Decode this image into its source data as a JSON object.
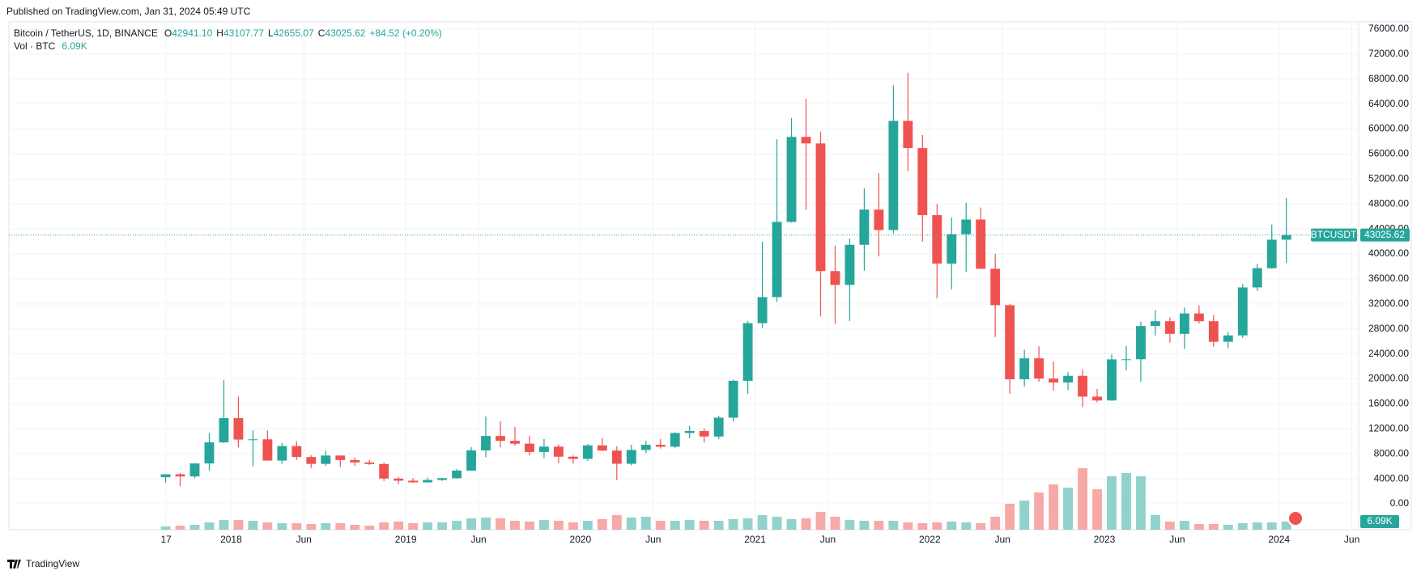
{
  "header": "Published on TradingView.com, Jan 31, 2024 05:49 UTC",
  "footer": "TradingView",
  "chart_data": {
    "type": "candlestick",
    "symbol": "Bitcoin / TetherUS, 1D, BINANCE",
    "ohlc_legend": [
      {
        "label": "O",
        "value": "42941.10"
      },
      {
        "label": "H",
        "value": "43107.77"
      },
      {
        "label": "L",
        "value": "42655.07"
      },
      {
        "label": "C",
        "value": "43025.62"
      }
    ],
    "change": "+84.52 (+0.20%)",
    "volume_title": "Vol · BTC",
    "volume_last": "6.09K",
    "price_label": "BTCUSDT",
    "last_price": 43025.62,
    "up_color": "#26a69a",
    "down_color": "#ef5350",
    "x": [
      "2017-08",
      "2017-09",
      "2017-10",
      "2017-11",
      "2017-12",
      "2018-01",
      "2018-02",
      "2018-03",
      "2018-04",
      "2018-05",
      "2018-06",
      "2018-07",
      "2018-08",
      "2018-09",
      "2018-10",
      "2018-11",
      "2018-12",
      "2019-01",
      "2019-02",
      "2019-03",
      "2019-04",
      "2019-05",
      "2019-06",
      "2019-07",
      "2019-08",
      "2019-09",
      "2019-10",
      "2019-11",
      "2019-12",
      "2020-01",
      "2020-02",
      "2020-03",
      "2020-04",
      "2020-05",
      "2020-06",
      "2020-07",
      "2020-08",
      "2020-09",
      "2020-10",
      "2020-11",
      "2020-12",
      "2021-01",
      "2021-02",
      "2021-03",
      "2021-04",
      "2021-05",
      "2021-06",
      "2021-07",
      "2021-08",
      "2021-09",
      "2021-10",
      "2021-11",
      "2021-12",
      "2022-01",
      "2022-02",
      "2022-03",
      "2022-04",
      "2022-05",
      "2022-06",
      "2022-07",
      "2022-08",
      "2022-09",
      "2022-10",
      "2022-11",
      "2022-12",
      "2023-01",
      "2023-02",
      "2023-03",
      "2023-04",
      "2023-05",
      "2023-06",
      "2023-07",
      "2023-08",
      "2023-09",
      "2023-10",
      "2023-11",
      "2023-12",
      "2024-01"
    ],
    "ohlc": [
      [
        4261,
        4745,
        3400,
        4724
      ],
      [
        4724,
        4939,
        2817,
        4378
      ],
      [
        4378,
        6470,
        4110,
        6463
      ],
      [
        6463,
        11300,
        5325,
        9838
      ],
      [
        9838,
        19798,
        9722,
        13716
      ],
      [
        13716,
        17176,
        9035,
        10285
      ],
      [
        10285,
        11786,
        6000,
        10326
      ],
      [
        10326,
        11710,
        7322,
        6923
      ],
      [
        6923,
        9759,
        6430,
        9246
      ],
      [
        9246,
        10020,
        7032,
        7494
      ],
      [
        7494,
        7777,
        5750,
        6391
      ],
      [
        6391,
        8507,
        6070,
        7730
      ],
      [
        7730,
        7760,
        5880,
        7011
      ],
      [
        7011,
        7410,
        6100,
        6626
      ],
      [
        6626,
        7000,
        6200,
        6371
      ],
      [
        6371,
        6600,
        3652,
        4041
      ],
      [
        4041,
        4300,
        3156,
        3702
      ],
      [
        3702,
        4140,
        3350,
        3434
      ],
      [
        3434,
        4198,
        3360,
        3814
      ],
      [
        3814,
        4140,
        3670,
        4103
      ],
      [
        4103,
        5600,
        4030,
        5320
      ],
      [
        5320,
        9074,
        5350,
        8555
      ],
      [
        8555,
        13970,
        7440,
        10855
      ],
      [
        10855,
        13200,
        9010,
        10085
      ],
      [
        10085,
        12325,
        9320,
        9630
      ],
      [
        9630,
        10905,
        7710,
        8294
      ],
      [
        8294,
        10370,
        7300,
        9150
      ],
      [
        9150,
        9500,
        6515,
        7546
      ],
      [
        7546,
        7750,
        6435,
        7195
      ],
      [
        7195,
        9580,
        6870,
        9353
      ],
      [
        9353,
        10500,
        8450,
        8523
      ],
      [
        8523,
        9200,
        3782,
        6410
      ],
      [
        6410,
        9460,
        6150,
        8620
      ],
      [
        8620,
        10070,
        8100,
        9448
      ],
      [
        9448,
        10380,
        8833,
        9138
      ],
      [
        9138,
        11444,
        8900,
        11335
      ],
      [
        11335,
        12468,
        10525,
        11650
      ],
      [
        11650,
        12067,
        9825,
        10776
      ],
      [
        10776,
        14100,
        10375,
        13791
      ],
      [
        13791,
        19863,
        13195,
        19696
      ],
      [
        19696,
        29300,
        17572,
        28923
      ],
      [
        28923,
        41950,
        28130,
        33092
      ],
      [
        33092,
        58352,
        32296,
        45135
      ],
      [
        45135,
        61781,
        45000,
        58740
      ],
      [
        58740,
        64854,
        47044,
        57694
      ],
      [
        57694,
        59592,
        30000,
        37253
      ],
      [
        37253,
        41330,
        28805,
        35045
      ],
      [
        35045,
        42448,
        29278,
        41461
      ],
      [
        41461,
        50500,
        37332,
        47100
      ],
      [
        47100,
        52920,
        39600,
        43824
      ],
      [
        43824,
        67000,
        43283,
        61300
      ],
      [
        61300,
        69000,
        53256,
        56950
      ],
      [
        56950,
        59053,
        42000,
        46216
      ],
      [
        46216,
        47990,
        32917,
        38466
      ],
      [
        38466,
        45821,
        34322,
        43160
      ],
      [
        43160,
        48189,
        37155,
        45510
      ],
      [
        45510,
        47444,
        37578,
        37630
      ],
      [
        37630,
        40023,
        26700,
        31801
      ],
      [
        31801,
        31982,
        17622,
        19942
      ],
      [
        19942,
        24668,
        18781,
        23293
      ],
      [
        23293,
        25211,
        19520,
        20050
      ],
      [
        20050,
        22799,
        18125,
        19423
      ],
      [
        19423,
        21085,
        18190,
        20490
      ],
      [
        20490,
        21480,
        15476,
        17164
      ],
      [
        17164,
        18387,
        16256,
        16542
      ],
      [
        16542,
        23960,
        16499,
        23125
      ],
      [
        23125,
        25250,
        21351,
        23141
      ],
      [
        23141,
        29184,
        19549,
        28465
      ],
      [
        28465,
        31000,
        26942,
        29233
      ],
      [
        29233,
        29820,
        25811,
        27210
      ],
      [
        27210,
        31431,
        24800,
        30472
      ],
      [
        30472,
        31804,
        28861,
        29232
      ],
      [
        29232,
        30244,
        25166,
        25941
      ],
      [
        25941,
        27488,
        24901,
        26963
      ],
      [
        26963,
        35198,
        26538,
        34639
      ],
      [
        34639,
        38450,
        34097,
        37724
      ],
      [
        37724,
        44700,
        37615,
        42284
      ],
      [
        42284,
        48969,
        38555,
        43025.62
      ]
    ],
    "volume": [
      20000,
      25000,
      30000,
      45000,
      60000,
      60000,
      55000,
      45000,
      40000,
      40000,
      35000,
      40000,
      40000,
      30000,
      25000,
      45000,
      50000,
      40000,
      45000,
      45000,
      55000,
      70000,
      75000,
      70000,
      55000,
      50000,
      60000,
      55000,
      45000,
      55000,
      65000,
      90000,
      75000,
      80000,
      55000,
      55000,
      60000,
      55000,
      55000,
      65000,
      70000,
      90000,
      80000,
      65000,
      70000,
      110000,
      80000,
      60000,
      55000,
      55000,
      55000,
      45000,
      40000,
      45000,
      50000,
      45000,
      40000,
      80000,
      160000,
      180000,
      230000,
      280000,
      260000,
      380000,
      250000,
      330000,
      350000,
      330000,
      90000,
      50000,
      55000,
      35000,
      35000,
      30000,
      40000,
      45000,
      45000,
      50000
    ],
    "volume_ylim": [
      0,
      800000
    ],
    "xlim": [
      "2016-09-23",
      "2024-06-15"
    ],
    "xticks": [
      {
        "value": "2017-08-17",
        "label": "17"
      },
      {
        "value": "2018-01",
        "label": "2018"
      },
      {
        "value": "2018-06",
        "label": "Jun"
      },
      {
        "value": "2019-01",
        "label": "2019"
      },
      {
        "value": "2019-06",
        "label": "Jun"
      },
      {
        "value": "2020-01",
        "label": "2020"
      },
      {
        "value": "2020-06",
        "label": "Jun"
      },
      {
        "value": "2021-01",
        "label": "2021"
      },
      {
        "value": "2021-06",
        "label": "Jun"
      },
      {
        "value": "2022-01",
        "label": "2022"
      },
      {
        "value": "2022-06",
        "label": "Jun"
      },
      {
        "value": "2023-01",
        "label": "2023"
      },
      {
        "value": "2023-06",
        "label": "Jun"
      },
      {
        "value": "2024-01",
        "label": "2024"
      },
      {
        "value": "2024-06",
        "label": "Jun"
      }
    ],
    "ylim": [
      -4140,
      77160
    ],
    "yticks": [
      {
        "value": 0,
        "label": "0.00"
      },
      {
        "value": 4000,
        "label": "4000.00"
      },
      {
        "value": 8000,
        "label": "8000.00"
      },
      {
        "value": 12000,
        "label": "12000.00"
      },
      {
        "value": 16000,
        "label": "16000.00"
      },
      {
        "value": 20000,
        "label": "20000.00"
      },
      {
        "value": 24000,
        "label": "24000.00"
      },
      {
        "value": 28000,
        "label": "28000.00"
      },
      {
        "value": 32000,
        "label": "32000.00"
      },
      {
        "value": 36000,
        "label": "36000.00"
      },
      {
        "value": 40000,
        "label": "40000.00"
      },
      {
        "value": 44000,
        "label": "44000.00"
      },
      {
        "value": 48000,
        "label": "48000.00"
      },
      {
        "value": 52000,
        "label": "52000.00"
      },
      {
        "value": 56000,
        "label": "56000.00"
      },
      {
        "value": 60000,
        "label": "60000.00"
      },
      {
        "value": 64000,
        "label": "64000.00"
      },
      {
        "value": 68000,
        "label": "68000.00"
      },
      {
        "value": 72000,
        "label": "72000.00"
      },
      {
        "value": 76000,
        "label": "76000.00"
      }
    ],
    "grid": true
  }
}
